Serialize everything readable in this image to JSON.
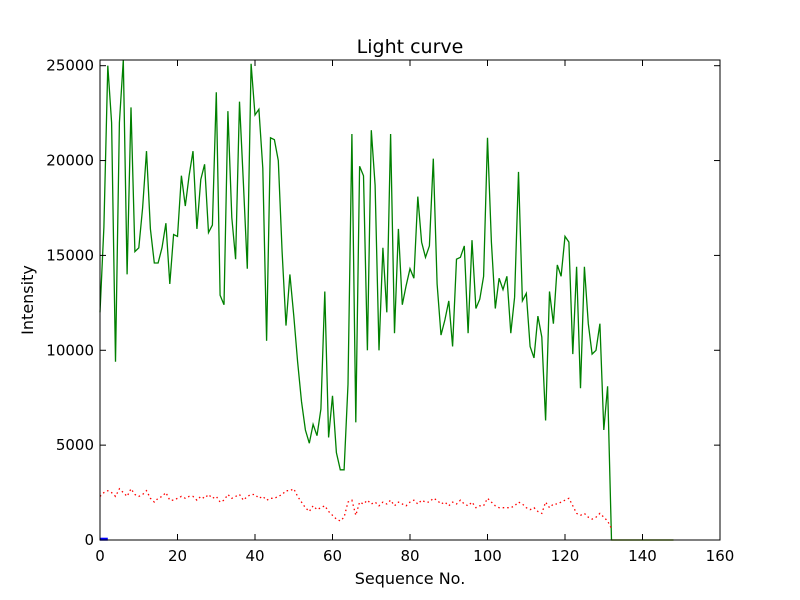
{
  "chart_data": {
    "type": "line",
    "title": "Light curve",
    "xlabel": "Sequence No.",
    "ylabel": "Intensity",
    "xlim": [
      0,
      160
    ],
    "ylim": [
      0,
      25300
    ],
    "xticks": [
      0,
      20,
      40,
      60,
      80,
      100,
      120,
      140,
      160
    ],
    "yticks": [
      0,
      5000,
      10000,
      15000,
      20000,
      25000
    ],
    "grid": false,
    "legend": "none",
    "series": [
      {
        "color": "#008000",
        "style": "solid",
        "x": [
          0,
          1,
          2,
          3,
          4,
          5,
          6,
          7,
          8,
          9,
          10,
          11,
          12,
          13,
          14,
          15,
          16,
          17,
          18,
          19,
          20,
          21,
          22,
          23,
          24,
          25,
          26,
          27,
          28,
          29,
          30,
          31,
          32,
          33,
          34,
          35,
          36,
          37,
          38,
          39,
          40,
          41,
          42,
          43,
          44,
          45,
          46,
          47,
          48,
          49,
          50,
          51,
          52,
          53,
          54,
          55,
          56,
          57,
          58,
          59,
          60,
          61,
          62,
          63,
          64,
          65,
          66,
          67,
          68,
          69,
          70,
          71,
          72,
          73,
          74,
          75,
          76,
          77,
          78,
          79,
          80,
          81,
          82,
          83,
          84,
          85,
          86,
          87,
          88,
          89,
          90,
          91,
          92,
          93,
          94,
          95,
          96,
          97,
          98,
          99,
          100,
          101,
          102,
          103,
          104,
          105,
          106,
          107,
          108,
          109,
          110,
          111,
          112,
          113,
          114,
          115,
          116,
          117,
          118,
          119,
          120,
          121,
          122,
          123,
          124,
          125,
          126,
          127,
          128,
          129,
          130,
          131,
          132,
          133,
          134,
          135,
          136,
          137,
          138,
          139,
          140,
          141,
          142,
          143,
          144,
          145,
          146,
          147,
          148
        ],
        "y": [
          12000,
          16500,
          25000,
          22000,
          9400,
          22000,
          25300,
          14000,
          22800,
          15200,
          15400,
          17500,
          20500,
          16400,
          14600,
          14600,
          15400,
          16700,
          13500,
          16100,
          16000,
          19200,
          17600,
          19200,
          20500,
          16400,
          19000,
          19800,
          16200,
          16600,
          23600,
          12900,
          12400,
          22600,
          17000,
          14800,
          23100,
          18800,
          14300,
          25100,
          22400,
          22700,
          19600,
          10500,
          21200,
          21100,
          20000,
          15200,
          11300,
          14000,
          11800,
          9400,
          7300,
          5800,
          5100,
          6100,
          5500,
          6900,
          13100,
          5400,
          7600,
          4600,
          3700,
          3700,
          8200,
          21400,
          6200,
          19700,
          19200,
          10000,
          21600,
          18700,
          10000,
          15400,
          12000,
          21400,
          10900,
          16400,
          12400,
          13400,
          14300,
          13800,
          18100,
          15700,
          14900,
          15500,
          20100,
          13500,
          10800,
          11600,
          12600,
          10200,
          14800,
          14900,
          15500,
          10900,
          15800,
          12200,
          12700,
          13900,
          21200,
          15700,
          12200,
          13800,
          13200,
          13900,
          10900,
          12800,
          19400,
          12600,
          13000,
          10200,
          9600,
          11800,
          10700,
          6300,
          13100,
          11400,
          14500,
          13900,
          16000,
          15700,
          9800,
          14400,
          8000,
          14400,
          11400,
          9800,
          10000,
          11400,
          5800,
          8100,
          0,
          0,
          0,
          0,
          0,
          0,
          0,
          0,
          0,
          0,
          0,
          0,
          0,
          0,
          0,
          0,
          0
        ]
      },
      {
        "color": "#ff0000",
        "style": "dotted",
        "x": [
          0,
          1,
          2,
          3,
          4,
          5,
          6,
          7,
          8,
          9,
          10,
          11,
          12,
          13,
          14,
          15,
          16,
          17,
          18,
          19,
          20,
          21,
          22,
          23,
          24,
          25,
          26,
          27,
          28,
          29,
          30,
          31,
          32,
          33,
          34,
          35,
          36,
          37,
          38,
          39,
          40,
          41,
          42,
          43,
          44,
          45,
          46,
          47,
          48,
          49,
          50,
          51,
          52,
          53,
          54,
          55,
          56,
          57,
          58,
          59,
          60,
          61,
          62,
          63,
          64,
          65,
          66,
          67,
          68,
          69,
          70,
          71,
          72,
          73,
          74,
          75,
          76,
          77,
          78,
          79,
          80,
          81,
          82,
          83,
          84,
          85,
          86,
          87,
          88,
          89,
          90,
          91,
          92,
          93,
          94,
          95,
          96,
          97,
          98,
          99,
          100,
          101,
          102,
          103,
          104,
          105,
          106,
          107,
          108,
          109,
          110,
          111,
          112,
          113,
          114,
          115,
          116,
          117,
          118,
          119,
          120,
          121,
          122,
          123,
          124,
          125,
          126,
          127,
          128,
          129,
          130,
          131,
          132
        ],
        "y": [
          2300,
          2500,
          2600,
          2500,
          2300,
          2700,
          2500,
          2300,
          2700,
          2400,
          2300,
          2400,
          2600,
          2200,
          2000,
          2200,
          2300,
          2500,
          2100,
          2100,
          2200,
          2300,
          2200,
          2300,
          2300,
          2100,
          2300,
          2200,
          2400,
          2200,
          2300,
          2000,
          2100,
          2400,
          2200,
          2300,
          2400,
          2100,
          2300,
          2400,
          2400,
          2200,
          2300,
          2100,
          2200,
          2200,
          2300,
          2400,
          2600,
          2600,
          2700,
          2300,
          2000,
          1700,
          1500,
          1800,
          1600,
          1700,
          1800,
          1500,
          1300,
          1100,
          1000,
          1200,
          2000,
          2100,
          1300,
          2000,
          1900,
          2100,
          1900,
          2000,
          1800,
          2000,
          1900,
          2100,
          1800,
          2000,
          1900,
          1800,
          2000,
          2100,
          1900,
          2100,
          2000,
          2000,
          2200,
          2100,
          1900,
          2000,
          1800,
          2000,
          1900,
          2100,
          1900,
          1800,
          2000,
          1700,
          1800,
          1800,
          2200,
          2000,
          1800,
          1700,
          1700,
          1700,
          1700,
          1800,
          2000,
          1900,
          1700,
          1600,
          1700,
          1500,
          1400,
          2000,
          1700,
          1900,
          1900,
          2000,
          2100,
          2200,
          1800,
          1400,
          1300,
          1400,
          1200,
          1100,
          1200,
          1400,
          1200,
          1000,
          600
        ]
      },
      {
        "color": "#bfbf00",
        "style": "solid",
        "x": [
          132,
          140,
          148
        ],
        "y": [
          0,
          0,
          0
        ]
      },
      {
        "color": "#0000ff",
        "style": "solid",
        "x": [
          0,
          1,
          2
        ],
        "y": [
          40,
          40,
          40
        ]
      }
    ]
  }
}
